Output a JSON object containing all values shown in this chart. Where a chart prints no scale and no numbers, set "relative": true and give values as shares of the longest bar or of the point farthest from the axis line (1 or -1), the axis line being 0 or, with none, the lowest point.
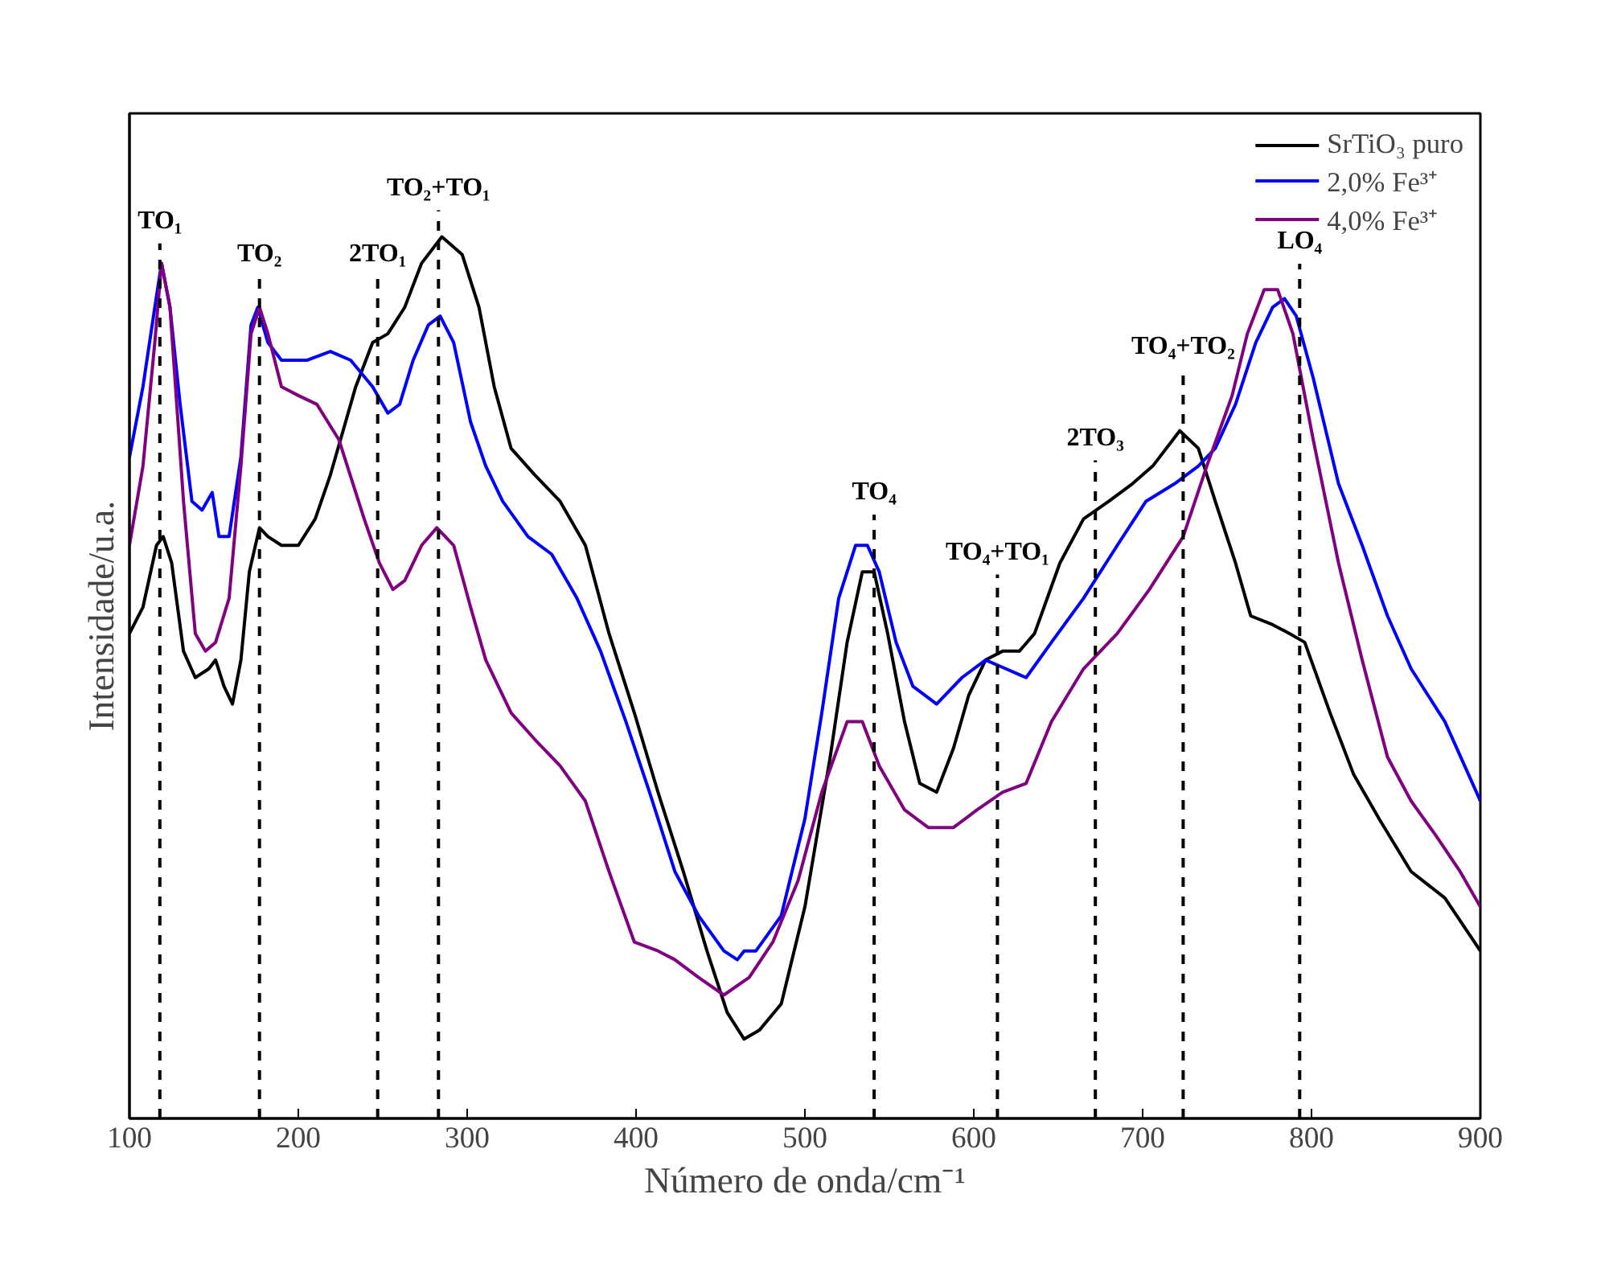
{
  "chart_data": {
    "type": "line",
    "relative": true,
    "xlabel": "Número de onda/cm⁻¹",
    "ylabel": "Intensidade/u.a.",
    "xlim": [
      100,
      900
    ],
    "xticks": [
      100,
      200,
      300,
      400,
      500,
      600,
      700,
      800,
      900
    ],
    "legend": "top right",
    "grid": false,
    "series": [
      {
        "name": "SrTiO₃ puro",
        "color": "#000000",
        "x": [
          100,
          108,
          116,
          120,
          125,
          132,
          139,
          147,
          151,
          156,
          161,
          166,
          171,
          177,
          182,
          190,
          200,
          210,
          219,
          234,
          244,
          253,
          263,
          273,
          285,
          297,
          307,
          316,
          326,
          340,
          355,
          370,
          384,
          399,
          413,
          428,
          442,
          454,
          464,
          473,
          486,
          500,
          515,
          525,
          534,
          541,
          549,
          559,
          568,
          578,
          588,
          597,
          607,
          617,
          627,
          636,
          651,
          665,
          680,
          694,
          706,
          722,
          733,
          743,
          755,
          764,
          777,
          787,
          796,
          811,
          825,
          840,
          859,
          879,
          900
        ],
        "values": [
          0.55,
          0.58,
          0.65,
          0.66,
          0.63,
          0.53,
          0.5,
          0.51,
          0.52,
          0.49,
          0.47,
          0.52,
          0.62,
          0.67,
          0.66,
          0.65,
          0.65,
          0.68,
          0.73,
          0.83,
          0.88,
          0.89,
          0.92,
          0.97,
          1.0,
          0.98,
          0.92,
          0.83,
          0.76,
          0.73,
          0.7,
          0.65,
          0.55,
          0.46,
          0.37,
          0.28,
          0.19,
          0.12,
          0.09,
          0.1,
          0.13,
          0.24,
          0.41,
          0.54,
          0.62,
          0.62,
          0.55,
          0.45,
          0.38,
          0.37,
          0.42,
          0.48,
          0.52,
          0.53,
          0.53,
          0.55,
          0.63,
          0.68,
          0.7,
          0.72,
          0.74,
          0.78,
          0.76,
          0.7,
          0.63,
          0.57,
          0.56,
          0.55,
          0.54,
          0.46,
          0.39,
          0.34,
          0.28,
          0.25,
          0.19
        ]
      },
      {
        "name": "2,0% Fe³⁺",
        "color": "#0000ff",
        "x": [
          100,
          108,
          115,
          119,
          124,
          130,
          137,
          143,
          149,
          153,
          159,
          166,
          172,
          176,
          182,
          190,
          205,
          219,
          231,
          244,
          253,
          260,
          268,
          277,
          284,
          292,
          302,
          311,
          321,
          336,
          350,
          365,
          379,
          394,
          408,
          423,
          437,
          452,
          460,
          464,
          471,
          486,
          500,
          510,
          520,
          530,
          537,
          544,
          554,
          564,
          578,
          593,
          607,
          619,
          631,
          646,
          665,
          685,
          702,
          719,
          733,
          743,
          755,
          767,
          777,
          784,
          791,
          801,
          816,
          830,
          845,
          859,
          879,
          900
        ],
        "values": [
          0.75,
          0.83,
          0.92,
          0.97,
          0.92,
          0.81,
          0.7,
          0.69,
          0.71,
          0.66,
          0.66,
          0.75,
          0.9,
          0.92,
          0.88,
          0.86,
          0.86,
          0.87,
          0.86,
          0.83,
          0.8,
          0.81,
          0.86,
          0.9,
          0.91,
          0.88,
          0.79,
          0.74,
          0.7,
          0.66,
          0.64,
          0.59,
          0.53,
          0.45,
          0.37,
          0.28,
          0.23,
          0.19,
          0.18,
          0.19,
          0.19,
          0.23,
          0.34,
          0.46,
          0.59,
          0.65,
          0.65,
          0.62,
          0.54,
          0.49,
          0.47,
          0.5,
          0.52,
          0.51,
          0.5,
          0.54,
          0.59,
          0.65,
          0.7,
          0.72,
          0.74,
          0.76,
          0.81,
          0.88,
          0.92,
          0.93,
          0.91,
          0.84,
          0.72,
          0.65,
          0.57,
          0.51,
          0.45,
          0.36
        ]
      },
      {
        "name": "4,0% Fe³⁺",
        "color": "#800080",
        "x": [
          100,
          108,
          115,
          119,
          124,
          132,
          139,
          145,
          151,
          159,
          166,
          172,
          177,
          182,
          190,
          200,
          211,
          224,
          239,
          248,
          256,
          263,
          273,
          282,
          292,
          302,
          311,
          326,
          340,
          355,
          370,
          384,
          399,
          413,
          423,
          437,
          452,
          467,
          481,
          496,
          510,
          525,
          534,
          544,
          559,
          573,
          588,
          602,
          617,
          631,
          646,
          665,
          685,
          704,
          724,
          738,
          753,
          762,
          772,
          780,
          789,
          801,
          816,
          830,
          845,
          859,
          874,
          888,
          900
        ],
        "values": [
          0.65,
          0.74,
          0.88,
          0.97,
          0.92,
          0.7,
          0.55,
          0.53,
          0.54,
          0.59,
          0.74,
          0.89,
          0.92,
          0.89,
          0.83,
          0.82,
          0.81,
          0.77,
          0.68,
          0.63,
          0.6,
          0.61,
          0.65,
          0.67,
          0.65,
          0.58,
          0.52,
          0.46,
          0.43,
          0.4,
          0.36,
          0.28,
          0.2,
          0.19,
          0.18,
          0.16,
          0.14,
          0.16,
          0.2,
          0.27,
          0.37,
          0.45,
          0.45,
          0.4,
          0.35,
          0.33,
          0.33,
          0.35,
          0.37,
          0.38,
          0.45,
          0.51,
          0.55,
          0.6,
          0.66,
          0.74,
          0.82,
          0.89,
          0.94,
          0.94,
          0.89,
          0.77,
          0.63,
          0.52,
          0.41,
          0.36,
          0.32,
          0.28,
          0.24
        ]
      }
    ],
    "ref_lines": [
      {
        "axis": "x",
        "value": 118,
        "label": "TO₁",
        "line_style": "dashed",
        "color": "#000000"
      },
      {
        "axis": "x",
        "value": 177,
        "label": "TO₂",
        "line_style": "dashed",
        "color": "#000000"
      },
      {
        "axis": "x",
        "value": 247,
        "label": "2TO₁",
        "line_style": "dashed",
        "color": "#000000"
      },
      {
        "axis": "x",
        "value": 283,
        "label": "TO₂+TO₁",
        "line_style": "dashed",
        "color": "#000000"
      },
      {
        "axis": "x",
        "value": 541,
        "label": "TO₄",
        "line_style": "dashed",
        "color": "#000000"
      },
      {
        "axis": "x",
        "value": 614,
        "label": "TO₄+TO₁",
        "line_style": "dashed",
        "color": "#000000"
      },
      {
        "axis": "x",
        "value": 672,
        "label": "2TO₃",
        "line_style": "dashed",
        "color": "#000000"
      },
      {
        "axis": "x",
        "value": 724,
        "label": "TO₄+TO₂",
        "line_style": "dashed",
        "color": "#000000"
      },
      {
        "axis": "x",
        "value": 793,
        "label": "LO₄",
        "line_style": "dashed",
        "color": "#000000"
      }
    ]
  }
}
